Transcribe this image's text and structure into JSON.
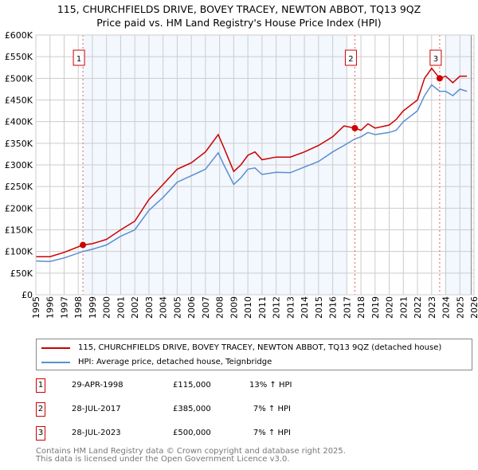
{
  "chart_data": {
    "type": "line",
    "title": "115, CHURCHFIELDS DRIVE, BOVEY TRACEY, NEWTON ABBOT, TQ13 9QZ",
    "subtitle": "Price paid vs. HM Land Registry's House Price Index (HPI)",
    "xlim": [
      1995,
      2026
    ],
    "ylim": [
      0,
      600000
    ],
    "yticks": [
      0,
      50000,
      100000,
      150000,
      200000,
      250000,
      300000,
      350000,
      400000,
      450000,
      500000,
      550000,
      600000
    ],
    "ytick_labels": [
      "£0",
      "£50K",
      "£100K",
      "£150K",
      "£200K",
      "£250K",
      "£300K",
      "£350K",
      "£400K",
      "£450K",
      "£500K",
      "£550K",
      "£600K"
    ],
    "xtick_labels": [
      "1995",
      "1996",
      "1997",
      "1998",
      "1999",
      "2000",
      "2001",
      "2002",
      "2003",
      "2004",
      "2005",
      "2006",
      "2007",
      "2008",
      "2009",
      "2010",
      "2011",
      "2012",
      "2013",
      "2014",
      "2015",
      "2016",
      "2017",
      "2018",
      "2019",
      "2020",
      "2021",
      "2022",
      "2023",
      "2024",
      "2025",
      "2026"
    ],
    "grid": true,
    "series": [
      {
        "name": "115, CHURCHFIELDS DRIVE, BOVEY TRACEY, NEWTON ABBOT, TQ13 9QZ (detached house)",
        "color": "#cc0000",
        "x": [
          1995,
          1996,
          1997,
          1998.33,
          1999,
          2000,
          2001,
          2002,
          2003,
          2004,
          2005,
          2006,
          2007,
          2007.9,
          2008.3,
          2009,
          2009.5,
          2010,
          2010.5,
          2011,
          2012,
          2013,
          2014,
          2015,
          2016,
          2016.8,
          2017.57,
          2018,
          2018.5,
          2019,
          2020,
          2020.5,
          2021,
          2022,
          2022.5,
          2023,
          2023.57,
          2024,
          2024.5,
          2025,
          2025.5
        ],
        "y": [
          88000,
          88000,
          98000,
          115000,
          118000,
          128000,
          150000,
          170000,
          220000,
          255000,
          290000,
          305000,
          330000,
          370000,
          340000,
          285000,
          300000,
          322000,
          330000,
          312000,
          318000,
          318000,
          330000,
          345000,
          365000,
          390000,
          385000,
          380000,
          395000,
          385000,
          392000,
          405000,
          425000,
          450000,
          500000,
          523000,
          500000,
          505000,
          490000,
          505000,
          505000
        ]
      },
      {
        "name": "HPI: Average price, detached house, Teignbridge",
        "color": "#5b8fd0",
        "x": [
          1995,
          1996,
          1997,
          1998.33,
          1999,
          2000,
          2001,
          2002,
          2003,
          2004,
          2005,
          2006,
          2007,
          2007.9,
          2008.3,
          2009,
          2009.5,
          2010,
          2010.5,
          2011,
          2012,
          2013,
          2014,
          2015,
          2016,
          2016.8,
          2017.57,
          2018,
          2018.5,
          2019,
          2020,
          2020.5,
          2021,
          2022,
          2022.5,
          2023,
          2023.57,
          2024,
          2024.5,
          2025,
          2025.5
        ],
        "y": [
          78000,
          77000,
          85000,
          100000,
          105000,
          115000,
          135000,
          150000,
          195000,
          225000,
          260000,
          275000,
          290000,
          328000,
          300000,
          255000,
          270000,
          290000,
          293000,
          278000,
          283000,
          282000,
          295000,
          308000,
          330000,
          345000,
          360000,
          365000,
          375000,
          370000,
          375000,
          380000,
          400000,
          425000,
          460000,
          485000,
          470000,
          470000,
          460000,
          475000,
          470000
        ]
      }
    ],
    "sales": [
      {
        "label": "1",
        "x": 1998.33,
        "y": 115000,
        "date": "29-APR-1998",
        "price": "£115,000",
        "hpi": "13% ↑ HPI"
      },
      {
        "label": "2",
        "x": 2017.57,
        "y": 385000,
        "date": "28-JUL-2017",
        "price": "£385,000",
        "hpi": "7% ↑ HPI"
      },
      {
        "label": "3",
        "x": 2023.57,
        "y": 500000,
        "date": "28-JUL-2023",
        "price": "£500,000",
        "hpi": "7% ↑ HPI"
      }
    ],
    "shaded_ranges": [
      [
        1998.33,
        2017.0
      ],
      [
        2023.9,
        2025.8
      ]
    ],
    "forecast_from": 2025.8,
    "legend_position": "below"
  },
  "footer": {
    "line1": "Contains HM Land Registry data © Crown copyright and database right 2025.",
    "line2": "This data is licensed under the Open Government Licence v3.0."
  }
}
